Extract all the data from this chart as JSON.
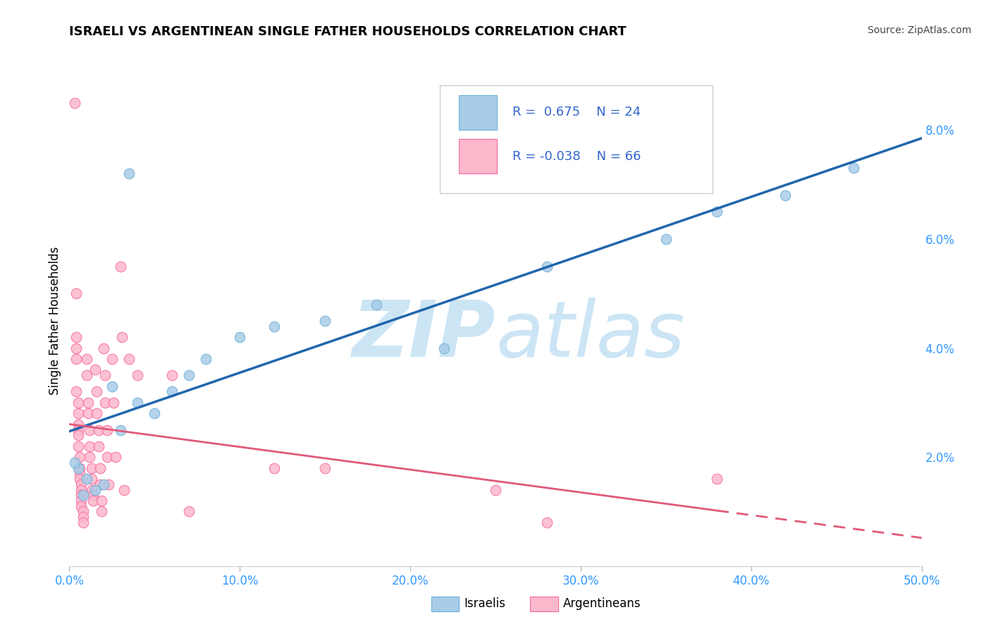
{
  "title": "ISRAELI VS ARGENTINEAN SINGLE FATHER HOUSEHOLDS CORRELATION CHART",
  "source_text": "Source: ZipAtlas.com",
  "ylabel": "Single Father Households",
  "xlim": [
    0.0,
    0.5
  ],
  "ylim": [
    0.0,
    0.09
  ],
  "xticks": [
    0.0,
    0.1,
    0.2,
    0.3,
    0.4,
    0.5
  ],
  "xtick_labels": [
    "0.0%",
    "10.0%",
    "20.0%",
    "30.0%",
    "40.0%",
    "50.0%"
  ],
  "yticks_right": [
    0.02,
    0.04,
    0.06,
    0.08
  ],
  "ytick_labels_right": [
    "2.0%",
    "4.0%",
    "6.0%",
    "8.0%"
  ],
  "grid_color": "#cccccc",
  "background_color": "#ffffff",
  "israeli_color": "#a8cce8",
  "israeli_edge_color": "#6baed6",
  "argentinean_color": "#fcb8cb",
  "argentinean_edge_color": "#f768a1",
  "israeli_R": 0.675,
  "israeli_N": 24,
  "argentinean_R": -0.038,
  "argentinean_N": 66,
  "israeli_line_color": "#2166ac",
  "argentinean_line_color": "#e05a7a",
  "watermark_color": "#cce5f5",
  "legend_label_1": "Israelis",
  "legend_label_2": "Argentineans",
  "israeli_points": [
    [
      0.02,
      0.015
    ],
    [
      0.01,
      0.016
    ],
    [
      0.005,
      0.018
    ],
    [
      0.015,
      0.014
    ],
    [
      0.008,
      0.013
    ],
    [
      0.003,
      0.019
    ],
    [
      0.025,
      0.033
    ],
    [
      0.03,
      0.025
    ],
    [
      0.04,
      0.03
    ],
    [
      0.05,
      0.028
    ],
    [
      0.06,
      0.032
    ],
    [
      0.07,
      0.035
    ],
    [
      0.08,
      0.038
    ],
    [
      0.1,
      0.042
    ],
    [
      0.12,
      0.044
    ],
    [
      0.15,
      0.045
    ],
    [
      0.18,
      0.048
    ],
    [
      0.22,
      0.04
    ],
    [
      0.28,
      0.055
    ],
    [
      0.35,
      0.06
    ],
    [
      0.38,
      0.065
    ],
    [
      0.42,
      0.068
    ],
    [
      0.46,
      0.073
    ],
    [
      0.035,
      0.072
    ]
  ],
  "argentinean_points": [
    [
      0.003,
      0.085
    ],
    [
      0.004,
      0.05
    ],
    [
      0.004,
      0.042
    ],
    [
      0.004,
      0.04
    ],
    [
      0.004,
      0.038
    ],
    [
      0.004,
      0.032
    ],
    [
      0.005,
      0.03
    ],
    [
      0.005,
      0.028
    ],
    [
      0.005,
      0.026
    ],
    [
      0.005,
      0.025
    ],
    [
      0.005,
      0.024
    ],
    [
      0.005,
      0.022
    ],
    [
      0.006,
      0.02
    ],
    [
      0.006,
      0.018
    ],
    [
      0.006,
      0.017
    ],
    [
      0.006,
      0.016
    ],
    [
      0.007,
      0.015
    ],
    [
      0.007,
      0.014
    ],
    [
      0.007,
      0.013
    ],
    [
      0.007,
      0.012
    ],
    [
      0.007,
      0.011
    ],
    [
      0.008,
      0.01
    ],
    [
      0.008,
      0.009
    ],
    [
      0.008,
      0.008
    ],
    [
      0.01,
      0.038
    ],
    [
      0.01,
      0.035
    ],
    [
      0.011,
      0.03
    ],
    [
      0.011,
      0.028
    ],
    [
      0.012,
      0.025
    ],
    [
      0.012,
      0.022
    ],
    [
      0.012,
      0.02
    ],
    [
      0.013,
      0.018
    ],
    [
      0.013,
      0.016
    ],
    [
      0.013,
      0.014
    ],
    [
      0.014,
      0.013
    ],
    [
      0.014,
      0.012
    ],
    [
      0.015,
      0.036
    ],
    [
      0.016,
      0.032
    ],
    [
      0.016,
      0.028
    ],
    [
      0.017,
      0.025
    ],
    [
      0.017,
      0.022
    ],
    [
      0.018,
      0.018
    ],
    [
      0.018,
      0.015
    ],
    [
      0.019,
      0.012
    ],
    [
      0.019,
      0.01
    ],
    [
      0.02,
      0.04
    ],
    [
      0.021,
      0.035
    ],
    [
      0.021,
      0.03
    ],
    [
      0.022,
      0.025
    ],
    [
      0.022,
      0.02
    ],
    [
      0.023,
      0.015
    ],
    [
      0.025,
      0.038
    ],
    [
      0.026,
      0.03
    ],
    [
      0.027,
      0.02
    ],
    [
      0.03,
      0.055
    ],
    [
      0.031,
      0.042
    ],
    [
      0.032,
      0.014
    ],
    [
      0.035,
      0.038
    ],
    [
      0.04,
      0.035
    ],
    [
      0.06,
      0.035
    ],
    [
      0.07,
      0.01
    ],
    [
      0.12,
      0.018
    ],
    [
      0.15,
      0.018
    ],
    [
      0.25,
      0.014
    ],
    [
      0.28,
      0.008
    ],
    [
      0.38,
      0.016
    ]
  ]
}
